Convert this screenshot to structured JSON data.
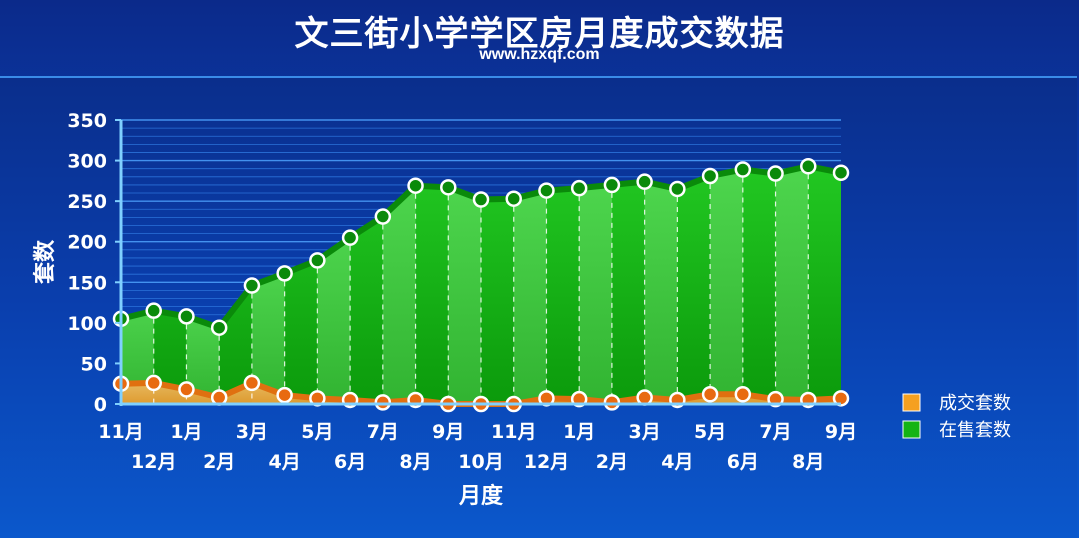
{
  "header": {
    "title": "文三街小学学区房月度成交数据",
    "subtitle": "www.hzxqf.com"
  },
  "colors": {
    "background": "#0a3fb0",
    "grid": "#3d8ef0",
    "sale_area": "#10b010",
    "sale_line": "#0a8a0a",
    "deal_area": "#e8a040",
    "deal_line": "#e07010"
  },
  "chart_data": {
    "type": "area",
    "title": "文三街小学学区房月度成交数据",
    "subtitle": "www.hzxqf.com",
    "xlabel": "月度",
    "ylabel": "套数",
    "ylim": [
      0,
      350
    ],
    "yticks": [
      "0",
      "50",
      "100",
      "150",
      "200",
      "250",
      "300",
      "350"
    ],
    "grid": true,
    "legend_position": "right",
    "categories": [
      "11月",
      "12月",
      "1月",
      "2月",
      "3月",
      "4月",
      "5月",
      "6月",
      "7月",
      "8月",
      "9月",
      "10月",
      "11月",
      "12月",
      "1月",
      "2月",
      "3月",
      "4月",
      "5月",
      "6月",
      "7月",
      "8月",
      "9月"
    ],
    "series": [
      {
        "name": "成交套数",
        "color": "#e07010",
        "values": [
          25,
          26,
          18,
          8,
          26,
          11,
          7,
          5,
          2,
          5,
          0,
          0,
          0,
          7,
          6,
          2,
          8,
          5,
          12,
          12,
          6,
          5,
          7
        ]
      },
      {
        "name": "在售套数",
        "color": "#10b010",
        "values": [
          105,
          115,
          108,
          94,
          146,
          161,
          177,
          205,
          231,
          269,
          267,
          252,
          253,
          263,
          266,
          270,
          274,
          265,
          281,
          289,
          284,
          293,
          285
        ]
      }
    ]
  }
}
